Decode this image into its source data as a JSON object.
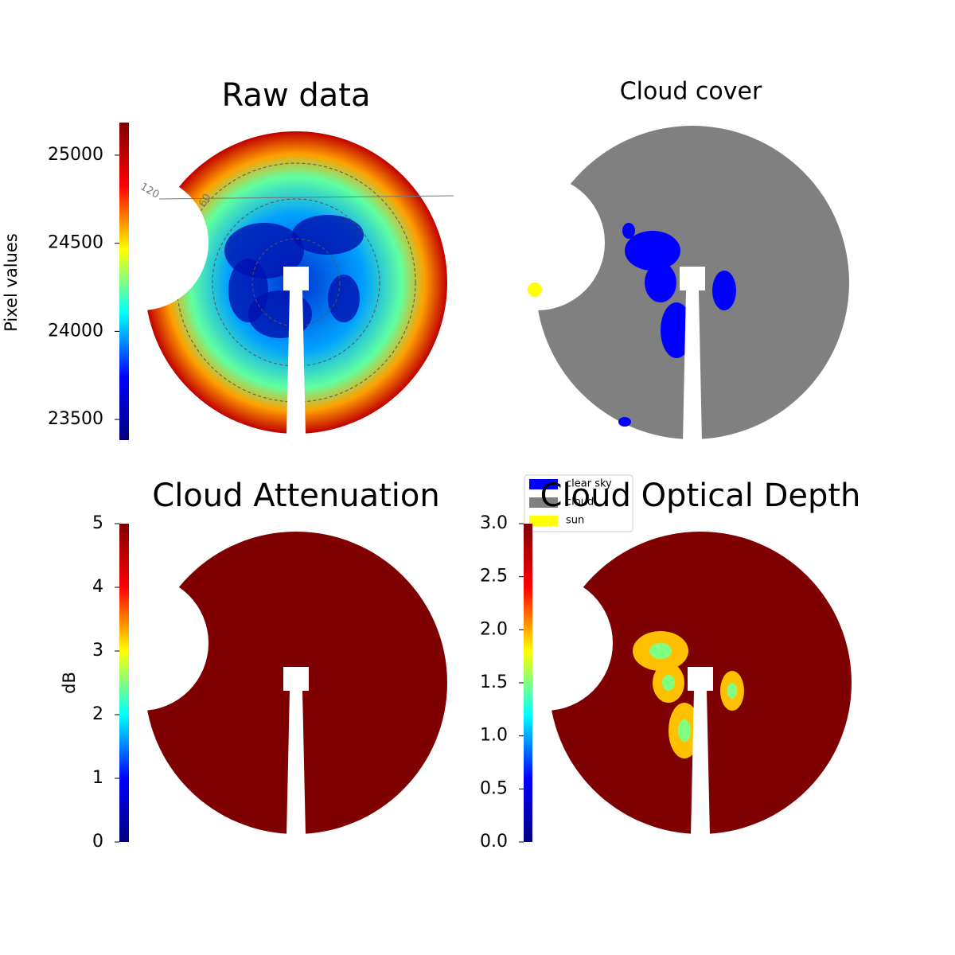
{
  "chart_data": [
    {
      "type": "image",
      "title": "Raw data",
      "colorbar_label": "Pixel values",
      "ylim": [
        23383,
        25185
      ],
      "yticks": [
        23500,
        24000,
        24500,
        25000
      ],
      "colormap": [
        "#00007f",
        "#0000ff",
        "#00ffff",
        "#ffff00",
        "#ff0000",
        "#7f0000"
      ],
      "annotations": [
        "120",
        "60"
      ]
    },
    {
      "type": "image",
      "title": "Cloud cover",
      "legend": [
        {
          "name": "clear sky",
          "color": "#0000ff"
        },
        {
          "name": "cloud",
          "color": "#808080"
        },
        {
          "name": "sun",
          "color": "#ffff00"
        }
      ]
    },
    {
      "type": "image",
      "title": "Cloud Attenuation",
      "colorbar_label": "dB",
      "ylim": [
        0,
        5
      ],
      "yticks": [
        0,
        1,
        2,
        3,
        4,
        5
      ],
      "colormap": [
        "#00007f",
        "#0000ff",
        "#00ffff",
        "#ffff00",
        "#ff0000",
        "#7f0000"
      ]
    },
    {
      "type": "image",
      "title": "Cloud Optical Depth",
      "ylim": [
        0,
        3
      ],
      "yticks": [
        {
          "value": 0,
          "label": "0.0"
        },
        0.5,
        {
          "value": 1,
          "label": "1.0"
        },
        1.5,
        {
          "value": 2,
          "label": "2.0"
        },
        2.5,
        {
          "value": 3,
          "label": "3.0"
        }
      ],
      "colormap": [
        "#00007f",
        "#0000ff",
        "#00ffff",
        "#ffff00",
        "#ff0000",
        "#7f0000"
      ]
    }
  ]
}
